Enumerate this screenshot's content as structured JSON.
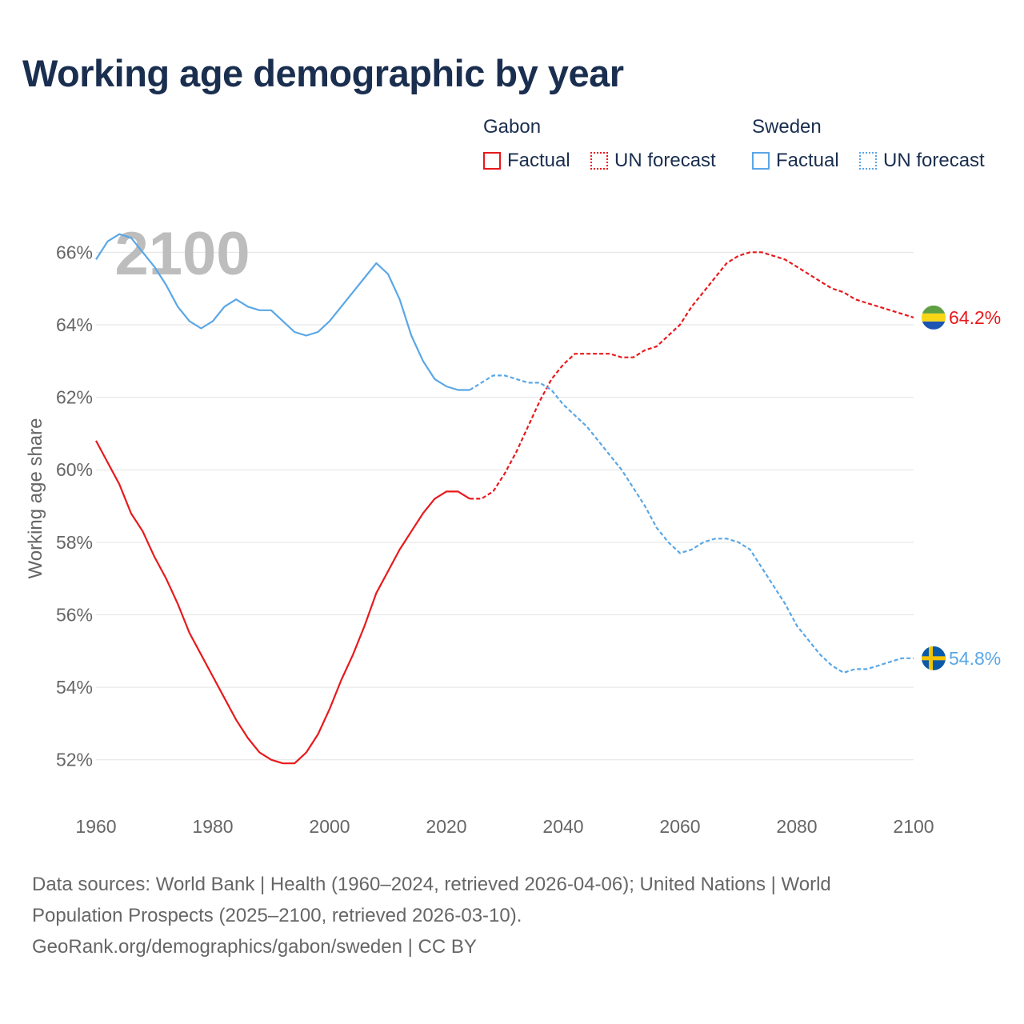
{
  "title": "Working age demographic by year",
  "legend": {
    "groups": [
      {
        "name": "Gabon",
        "color": "#e8191c",
        "factual_label": "Factual",
        "forecast_label": "UN forecast"
      },
      {
        "name": "Sweden",
        "color": "#5aa7e6",
        "factual_label": "Factual",
        "forecast_label": "UN forecast"
      }
    ]
  },
  "footer": {
    "line1": "Data sources: World Bank | Health (1960–2024, retrieved 2026-04-06); United Nations | World",
    "line2": "Population Prospects (2025–2100, retrieved 2026-03-10).",
    "line3": "GeoRank.org/demographics/gabon/sweden | CC BY"
  },
  "chart_data": {
    "type": "line",
    "title": "Working age demographic by year",
    "xlabel": "",
    "ylabel": "Working age share",
    "xlim": [
      1960,
      2100
    ],
    "ylim": [
      51,
      67
    ],
    "x_ticks": [
      1960,
      1980,
      2000,
      2020,
      2040,
      2060,
      2080,
      2100
    ],
    "x_tick_labels": [
      "1960",
      "1980",
      "2000",
      "2020",
      "2040",
      "2060",
      "2080",
      "2100"
    ],
    "y_ticks": [
      52,
      54,
      56,
      58,
      60,
      62,
      64,
      66
    ],
    "y_tick_labels": [
      "52%",
      "54%",
      "56%",
      "58%",
      "60%",
      "62%",
      "64%",
      "66%"
    ],
    "grid": true,
    "year_label": "2100",
    "series": [
      {
        "name": "Gabon",
        "color": "#e8191c",
        "end_label": "64.2%",
        "flag": "gabon-flag",
        "factual": [
          [
            1960,
            60.8
          ],
          [
            1962,
            60.2
          ],
          [
            1964,
            59.6
          ],
          [
            1966,
            58.8
          ],
          [
            1968,
            58.3
          ],
          [
            1970,
            57.6
          ],
          [
            1972,
            57.0
          ],
          [
            1974,
            56.3
          ],
          [
            1976,
            55.5
          ],
          [
            1978,
            54.9
          ],
          [
            1980,
            54.3
          ],
          [
            1982,
            53.7
          ],
          [
            1984,
            53.1
          ],
          [
            1986,
            52.6
          ],
          [
            1988,
            52.2
          ],
          [
            1990,
            52.0
          ],
          [
            1992,
            51.9
          ],
          [
            1994,
            51.9
          ],
          [
            1996,
            52.2
          ],
          [
            1998,
            52.7
          ],
          [
            2000,
            53.4
          ],
          [
            2002,
            54.2
          ],
          [
            2004,
            54.9
          ],
          [
            2006,
            55.7
          ],
          [
            2008,
            56.6
          ],
          [
            2010,
            57.2
          ],
          [
            2012,
            57.8
          ],
          [
            2014,
            58.3
          ],
          [
            2016,
            58.8
          ],
          [
            2018,
            59.2
          ],
          [
            2020,
            59.4
          ],
          [
            2022,
            59.4
          ],
          [
            2024,
            59.2
          ]
        ],
        "forecast": [
          [
            2024,
            59.2
          ],
          [
            2026,
            59.2
          ],
          [
            2028,
            59.4
          ],
          [
            2030,
            59.9
          ],
          [
            2032,
            60.5
          ],
          [
            2034,
            61.2
          ],
          [
            2036,
            61.9
          ],
          [
            2038,
            62.5
          ],
          [
            2040,
            62.9
          ],
          [
            2042,
            63.2
          ],
          [
            2044,
            63.2
          ],
          [
            2046,
            63.2
          ],
          [
            2048,
            63.2
          ],
          [
            2050,
            63.1
          ],
          [
            2052,
            63.1
          ],
          [
            2054,
            63.3
          ],
          [
            2056,
            63.4
          ],
          [
            2058,
            63.7
          ],
          [
            2060,
            64.0
          ],
          [
            2062,
            64.5
          ],
          [
            2064,
            64.9
          ],
          [
            2066,
            65.3
          ],
          [
            2068,
            65.7
          ],
          [
            2070,
            65.9
          ],
          [
            2072,
            66.0
          ],
          [
            2074,
            66.0
          ],
          [
            2076,
            65.9
          ],
          [
            2078,
            65.8
          ],
          [
            2080,
            65.6
          ],
          [
            2082,
            65.4
          ],
          [
            2084,
            65.2
          ],
          [
            2086,
            65.0
          ],
          [
            2088,
            64.9
          ],
          [
            2090,
            64.7
          ],
          [
            2092,
            64.6
          ],
          [
            2094,
            64.5
          ],
          [
            2096,
            64.4
          ],
          [
            2098,
            64.3
          ],
          [
            2100,
            64.2
          ]
        ]
      },
      {
        "name": "Sweden",
        "color": "#5aa7e6",
        "end_label": "54.8%",
        "flag": "sweden-flag",
        "factual": [
          [
            1960,
            65.8
          ],
          [
            1962,
            66.3
          ],
          [
            1964,
            66.5
          ],
          [
            1966,
            66.4
          ],
          [
            1968,
            66.0
          ],
          [
            1970,
            65.6
          ],
          [
            1972,
            65.1
          ],
          [
            1974,
            64.5
          ],
          [
            1976,
            64.1
          ],
          [
            1978,
            63.9
          ],
          [
            1980,
            64.1
          ],
          [
            1982,
            64.5
          ],
          [
            1984,
            64.7
          ],
          [
            1986,
            64.5
          ],
          [
            1988,
            64.4
          ],
          [
            1990,
            64.4
          ],
          [
            1992,
            64.1
          ],
          [
            1994,
            63.8
          ],
          [
            1996,
            63.7
          ],
          [
            1998,
            63.8
          ],
          [
            2000,
            64.1
          ],
          [
            2002,
            64.5
          ],
          [
            2004,
            64.9
          ],
          [
            2006,
            65.3
          ],
          [
            2008,
            65.7
          ],
          [
            2010,
            65.4
          ],
          [
            2012,
            64.7
          ],
          [
            2014,
            63.7
          ],
          [
            2016,
            63.0
          ],
          [
            2018,
            62.5
          ],
          [
            2020,
            62.3
          ],
          [
            2022,
            62.2
          ],
          [
            2024,
            62.2
          ]
        ],
        "forecast": [
          [
            2024,
            62.2
          ],
          [
            2026,
            62.4
          ],
          [
            2028,
            62.6
          ],
          [
            2030,
            62.6
          ],
          [
            2032,
            62.5
          ],
          [
            2034,
            62.4
          ],
          [
            2036,
            62.4
          ],
          [
            2038,
            62.2
          ],
          [
            2040,
            61.8
          ],
          [
            2042,
            61.5
          ],
          [
            2044,
            61.2
          ],
          [
            2046,
            60.8
          ],
          [
            2048,
            60.4
          ],
          [
            2050,
            60.0
          ],
          [
            2052,
            59.5
          ],
          [
            2054,
            59.0
          ],
          [
            2056,
            58.4
          ],
          [
            2058,
            58.0
          ],
          [
            2060,
            57.7
          ],
          [
            2062,
            57.8
          ],
          [
            2064,
            58.0
          ],
          [
            2066,
            58.1
          ],
          [
            2068,
            58.1
          ],
          [
            2070,
            58.0
          ],
          [
            2072,
            57.8
          ],
          [
            2074,
            57.3
          ],
          [
            2076,
            56.8
          ],
          [
            2078,
            56.3
          ],
          [
            2080,
            55.7
          ],
          [
            2082,
            55.3
          ],
          [
            2084,
            54.9
          ],
          [
            2086,
            54.6
          ],
          [
            2088,
            54.4
          ],
          [
            2090,
            54.5
          ],
          [
            2092,
            54.5
          ],
          [
            2094,
            54.6
          ],
          [
            2096,
            54.7
          ],
          [
            2098,
            54.8
          ],
          [
            2100,
            54.8
          ]
        ]
      }
    ]
  }
}
